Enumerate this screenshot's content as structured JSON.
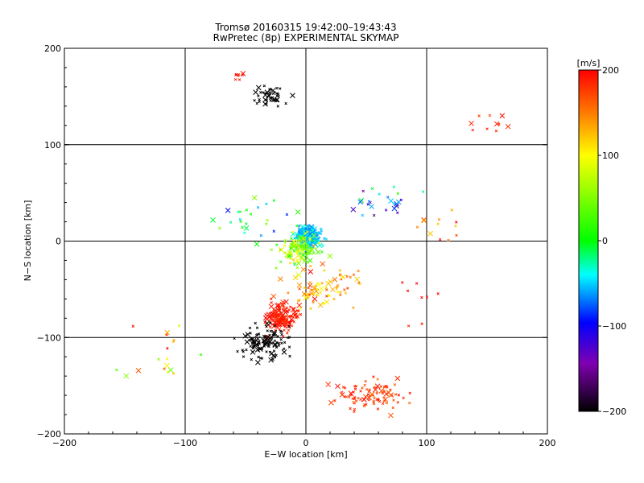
{
  "chart_data": {
    "type": "scatter",
    "title": "Tromsø 20160315 19:42:00–19:43:43",
    "subtitle": "RwPretec (8p) EXPERIMENTAL SKYMAP",
    "xlabel": "E−W location [km]",
    "ylabel": "N−S location [km]",
    "xlim": [
      -200,
      200
    ],
    "ylim": [
      -200,
      200
    ],
    "xticks": [
      "−200",
      "−100",
      "0",
      "100",
      "200"
    ],
    "yticks": [
      "−200",
      "−100",
      "0",
      "100",
      "200"
    ],
    "grid": true,
    "grid_values_x": [
      -100,
      0,
      100
    ],
    "grid_values_y": [
      -100,
      0,
      100
    ],
    "colorbar": {
      "label": "[m/s]",
      "range": [
        -200,
        200
      ],
      "ticks": [
        "200",
        "100",
        "0",
        "−100",
        "−200"
      ],
      "colormap": [
        "#000000",
        "#7f00b0",
        "#0000ff",
        "#00ffff",
        "#00ff00",
        "#ffff00",
        "#ff8000",
        "#ff0000"
      ]
    },
    "clusters": [
      {
        "cx": -30,
        "cy": 150,
        "sx": 10,
        "sy": 7,
        "n": 45,
        "v": -200,
        "vs": 0
      },
      {
        "cx": -55,
        "cy": 170,
        "sx": 8,
        "sy": 5,
        "n": 8,
        "v": 190,
        "vs": 10
      },
      {
        "cx": 150,
        "cy": 120,
        "sx": 15,
        "sy": 8,
        "n": 10,
        "v": 185,
        "vs": 10
      },
      {
        "cx": 2,
        "cy": 5,
        "sx": 7,
        "sy": 7,
        "n": 260,
        "v": -50,
        "vs": 25
      },
      {
        "cx": -5,
        "cy": -10,
        "sx": 12,
        "sy": 12,
        "n": 120,
        "v": 60,
        "vs": 50
      },
      {
        "cx": 15,
        "cy": -50,
        "sx": 25,
        "sy": 15,
        "n": 80,
        "v": 140,
        "vs": 40
      },
      {
        "cx": -20,
        "cy": -80,
        "sx": 9,
        "sy": 10,
        "n": 150,
        "v": 190,
        "vs": 10
      },
      {
        "cx": -35,
        "cy": -105,
        "sx": 15,
        "sy": 13,
        "n": 110,
        "v": -200,
        "vs": 0
      },
      {
        "cx": 50,
        "cy": -160,
        "sx": 22,
        "sy": 12,
        "n": 90,
        "v": 180,
        "vs": 15
      },
      {
        "cx": -40,
        "cy": 25,
        "sx": 20,
        "sy": 15,
        "n": 25,
        "v": -10,
        "vs": 60
      },
      {
        "cx": 70,
        "cy": 40,
        "sx": 25,
        "sy": 12,
        "n": 25,
        "v": -80,
        "vs": 80
      },
      {
        "cx": 110,
        "cy": 10,
        "sx": 15,
        "sy": 20,
        "n": 12,
        "v": 150,
        "vs": 40
      },
      {
        "cx": -120,
        "cy": -110,
        "sx": 25,
        "sy": 25,
        "n": 18,
        "v": 120,
        "vs": 80
      },
      {
        "cx": 110,
        "cy": -60,
        "sx": 25,
        "sy": 20,
        "n": 8,
        "v": 190,
        "vs": 10
      }
    ],
    "annotations": []
  }
}
